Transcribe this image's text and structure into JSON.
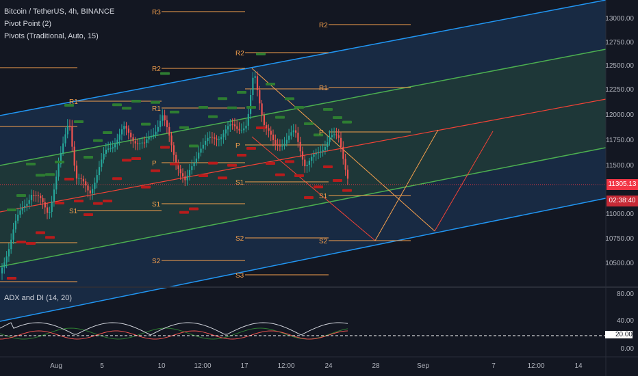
{
  "header": {
    "symbol_line": "Bitcoin / TetherUS, 4h, BINANCE",
    "indicator1": "Pivot Point (2)",
    "indicator2": "Pivots (Traditional, Auto, 15)"
  },
  "sub_pane": {
    "title": "ADX and DI (14, 20)",
    "axis_labels": [
      "80.00",
      "40.00",
      "20.00",
      "0.00"
    ]
  },
  "price_axis": {
    "labels": [
      "13000.00",
      "12750.00",
      "12500.00",
      "12250.00",
      "12000.00",
      "11750.00",
      "11500.00",
      "11000.00",
      "10750.00",
      "10500.00"
    ],
    "last_price": "11305.13",
    "countdown": "02:38:40"
  },
  "time_axis": {
    "labels": [
      "Aug",
      "5",
      "10",
      "12:00",
      "17",
      "12:00",
      "24",
      "28",
      "Sep",
      "7",
      "12:00",
      "14"
    ]
  },
  "pivot_labels": [
    "R3",
    "R2",
    "R2",
    "R1",
    "R1",
    "R1",
    "R2",
    "P",
    "P",
    "P",
    "S1",
    "S1",
    "S1",
    "S1",
    "S2",
    "S2",
    "S2",
    "S3"
  ],
  "colors": {
    "background": "#131722",
    "channel_outer": "#2196f3",
    "channel_inner": "#4caf50",
    "mid_line": "#f44336",
    "pivot_line": "#f7a14d",
    "up_candle": "#26a69a",
    "down_candle": "#ef5350",
    "price_badge": "#f23645"
  },
  "chart_data": {
    "type": "candlestick",
    "title": "Bitcoin / TetherUS, 4h, BINANCE",
    "y_range": [
      10300,
      13150
    ],
    "x_labels": [
      "Aug",
      "5",
      "10",
      "12:00",
      "17",
      "12:00",
      "24",
      "28",
      "Sep",
      "7",
      "12:00",
      "14"
    ],
    "last_price": 11305.13,
    "pivots": {
      "R3": 13100,
      "R2": 12520,
      "R1": 12140,
      "P": 11570,
      "S1": 11330,
      "S2": 10770,
      "S3": 10410
    }
  }
}
